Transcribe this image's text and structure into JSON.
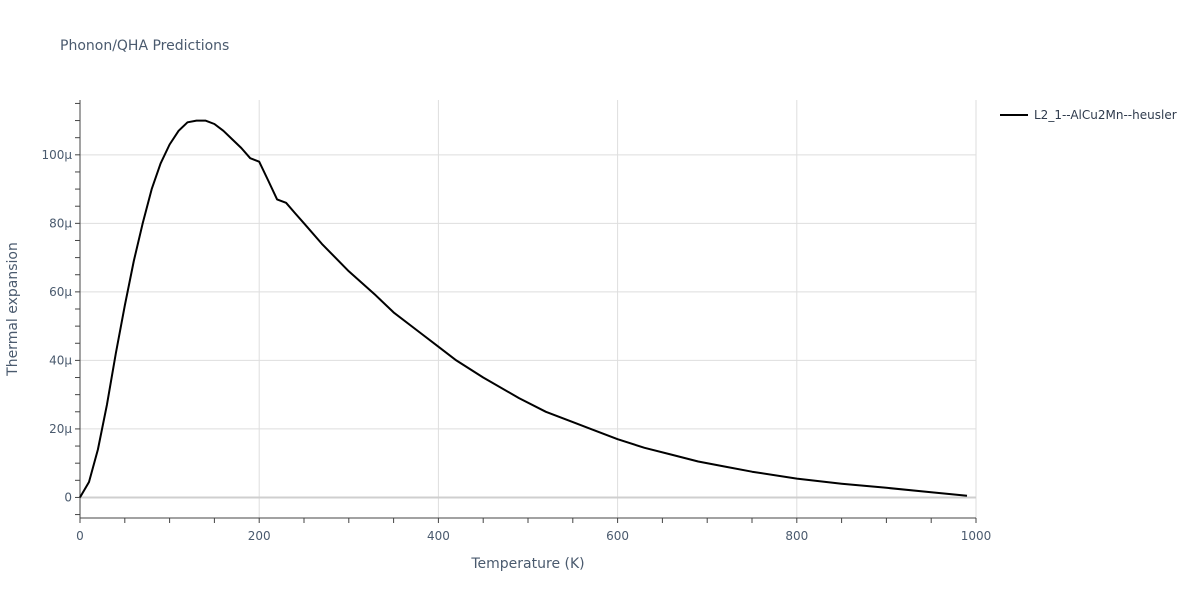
{
  "chart_data": {
    "type": "line",
    "title": "Phonon/QHA Predictions",
    "xlabel": "Temperature (K)",
    "ylabel": "Thermal expansion",
    "xlim": [
      0,
      1000
    ],
    "ylim": [
      -6,
      116
    ],
    "x_ticks": [
      {
        "value": 0,
        "label": "0"
      },
      {
        "value": 200,
        "label": "200"
      },
      {
        "value": 400,
        "label": "400"
      },
      {
        "value": 600,
        "label": "600"
      },
      {
        "value": 800,
        "label": "800"
      },
      {
        "value": 1000,
        "label": "1000"
      }
    ],
    "y_ticks": [
      {
        "value": 0,
        "label": "0"
      },
      {
        "value": 20,
        "label": "20μ"
      },
      {
        "value": 40,
        "label": "40μ"
      },
      {
        "value": 60,
        "label": "60μ"
      },
      {
        "value": 80,
        "label": "80μ"
      },
      {
        "value": 100,
        "label": "100μ"
      }
    ],
    "grid": true,
    "legend_position": "top-right",
    "series": [
      {
        "name": "L2_1--AlCu2Mn--heusler",
        "color": "#000000",
        "x": [
          0,
          10,
          20,
          30,
          40,
          50,
          60,
          70,
          80,
          90,
          100,
          110,
          120,
          130,
          140,
          150,
          160,
          170,
          180,
          190,
          200,
          210,
          220,
          230,
          240,
          250,
          270,
          300,
          330,
          350,
          380,
          400,
          420,
          450,
          490,
          520,
          550,
          570,
          600,
          630,
          660,
          690,
          720,
          750,
          800,
          850,
          900,
          950,
          990
        ],
        "y": [
          0,
          4.5,
          14,
          27,
          42,
          56,
          69,
          80,
          90,
          97.5,
          103,
          107,
          109.5,
          110,
          110,
          109,
          107,
          104.5,
          102,
          99,
          98,
          92.5,
          87,
          86,
          83,
          80,
          74,
          66,
          59,
          54,
          48,
          44,
          40,
          35,
          29,
          25,
          22,
          20,
          17,
          14.5,
          12.5,
          10.5,
          9,
          7.5,
          5.5,
          4,
          2.8,
          1.5,
          0.5
        ]
      }
    ]
  }
}
